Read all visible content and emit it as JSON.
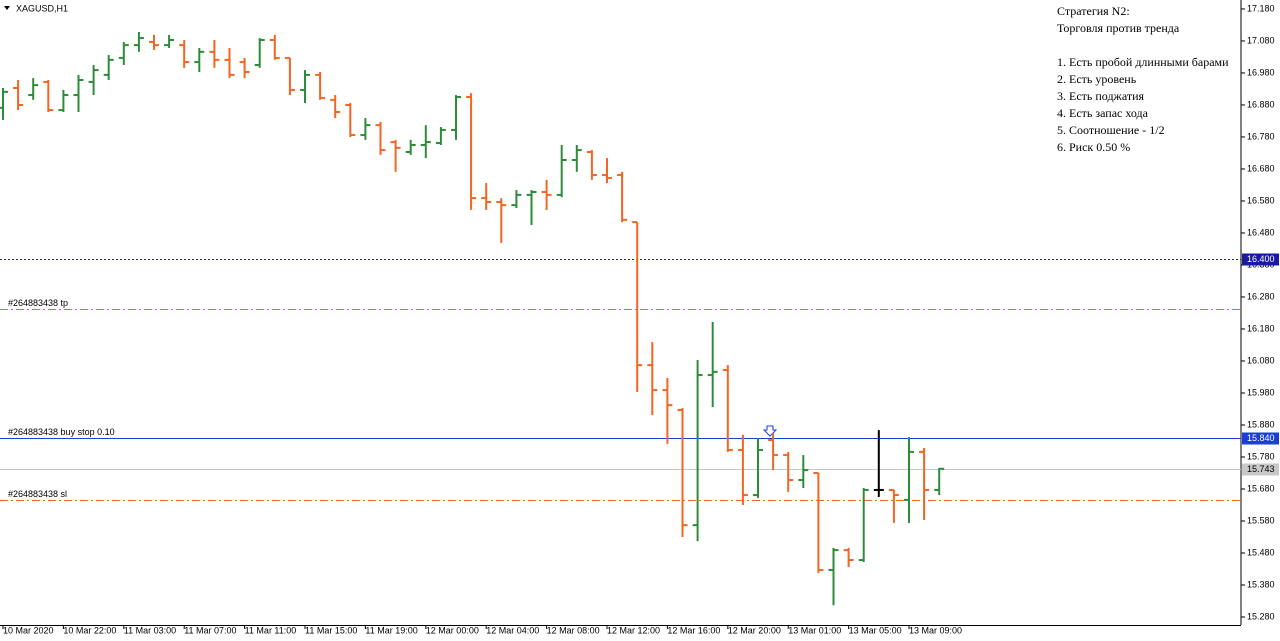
{
  "chart_data": {
    "type": "ohlc",
    "title": "XAGUSD,H1",
    "categories": [
      "10 Mar 2020",
      null,
      null,
      null,
      "10 Mar 22:00",
      null,
      null,
      null,
      "11 Mar 03:00",
      null,
      null,
      null,
      "11 Mar 07:00",
      null,
      null,
      null,
      "11 Mar 11:00",
      null,
      null,
      null,
      "11 Mar 15:00",
      null,
      null,
      null,
      "11 Mar 19:00",
      null,
      null,
      null,
      "12 Mar 00:00",
      null,
      null,
      null,
      "12 Mar 04:00",
      null,
      null,
      null,
      "12 Mar 08:00",
      null,
      null,
      null,
      "12 Mar 12:00",
      null,
      null,
      null,
      "12 Mar 16:00",
      null,
      null,
      null,
      "12 Mar 20:00",
      null,
      null,
      null,
      "13 Mar 01:00",
      null,
      null,
      null,
      "13 Mar 05:00",
      null,
      null,
      null,
      "13 Mar 09:00",
      null,
      null
    ],
    "open": [
      16.871,
      16.933,
      16.911,
      16.952,
      16.864,
      16.911,
      16.952,
      16.974,
      17.027,
      17.067,
      17.077,
      17.067,
      17.067,
      17.014,
      17.046,
      17.021,
      17.014,
      17.005,
      17.083,
      17.027,
      16.927,
      16.974,
      16.896,
      16.88,
      16.786,
      16.817,
      16.764,
      16.733,
      16.755,
      16.761,
      16.802,
      16.905,
      16.589,
      16.577,
      16.567,
      16.599,
      16.608,
      16.599,
      16.708,
      16.733,
      16.661,
      16.661,
      16.514,
      16.067,
      15.989,
      15.927,
      15.567,
      16.036,
      16.052,
      15.802,
      15.661,
      15.833,
      15.786,
      15.708,
      15.73,
      15.427,
      15.489,
      15.458,
      15.677,
      15.677,
      15.646,
      15.796,
      15.677
    ],
    "high": [
      16.933,
      16.958,
      16.964,
      16.958,
      16.927,
      16.974,
      17.005,
      17.036,
      17.077,
      17.108,
      17.099,
      17.099,
      17.083,
      17.058,
      17.083,
      17.058,
      17.027,
      17.089,
      17.099,
      17.027,
      16.989,
      16.983,
      16.911,
      16.886,
      16.839,
      16.827,
      16.771,
      16.771,
      16.817,
      16.811,
      16.911,
      16.917,
      16.636,
      16.589,
      16.614,
      16.614,
      16.646,
      16.755,
      16.755,
      16.739,
      16.714,
      16.671,
      16.514,
      16.139,
      16.027,
      15.933,
      16.083,
      16.202,
      16.067,
      15.849,
      15.839,
      15.855,
      15.796,
      15.786,
      15.73,
      15.496,
      15.496,
      15.683,
      15.864,
      15.677,
      15.842,
      15.808,
      15.746
    ],
    "low": [
      16.833,
      16.864,
      16.896,
      16.858,
      16.858,
      16.858,
      16.911,
      16.958,
      17.005,
      17.046,
      17.052,
      17.058,
      16.996,
      16.983,
      16.996,
      16.964,
      16.964,
      16.996,
      17.021,
      16.911,
      16.886,
      16.896,
      16.839,
      16.78,
      16.771,
      16.724,
      16.671,
      16.724,
      16.714,
      16.755,
      16.771,
      16.552,
      16.552,
      16.449,
      16.558,
      16.505,
      16.552,
      16.592,
      16.671,
      16.646,
      16.636,
      16.514,
      15.983,
      15.911,
      15.821,
      15.53,
      15.517,
      15.936,
      15.796,
      15.63,
      15.652,
      15.739,
      15.671,
      15.683,
      15.417,
      15.317,
      15.436,
      15.452,
      15.655,
      15.574,
      15.574,
      15.583,
      15.661
    ],
    "close": [
      16.921,
      16.88,
      16.942,
      16.864,
      16.911,
      16.958,
      16.989,
      17.021,
      17.067,
      17.089,
      17.067,
      17.083,
      17.014,
      17.046,
      17.021,
      16.974,
      16.983,
      17.083,
      17.027,
      16.927,
      16.974,
      16.902,
      16.858,
      16.786,
      16.817,
      16.739,
      16.746,
      16.755,
      16.764,
      16.802,
      16.905,
      16.589,
      16.577,
      16.567,
      16.599,
      16.608,
      16.599,
      16.708,
      16.739,
      16.661,
      16.652,
      16.521,
      16.067,
      15.989,
      15.942,
      15.567,
      16.036,
      16.046,
      15.802,
      15.661,
      15.802,
      15.786,
      15.708,
      15.739,
      15.427,
      15.489,
      15.458,
      15.677,
      15.677,
      15.661,
      15.796,
      15.677,
      15.743
    ],
    "up_color": "#2e8b3a",
    "down_color": "#f26522",
    "doji_color": "#000000",
    "ylim": [
      15.255,
      17.208
    ],
    "yticks": [
      {
        "value": 15.28,
        "label": "15.280"
      },
      {
        "value": 15.38,
        "label": "15.380"
      },
      {
        "value": 15.48,
        "label": "15.480"
      },
      {
        "value": 15.58,
        "label": "15.580"
      },
      {
        "value": 15.68,
        "label": "15.680"
      },
      {
        "value": 15.78,
        "label": "15.780"
      },
      {
        "value": 15.88,
        "label": "15.880"
      },
      {
        "value": 15.98,
        "label": "15.980"
      },
      {
        "value": 16.08,
        "label": "16.080"
      },
      {
        "value": 16.18,
        "label": "16.180"
      },
      {
        "value": 16.28,
        "label": "16.280"
      },
      {
        "value": 16.38,
        "label": "16.380"
      },
      {
        "value": 16.48,
        "label": "16.480"
      },
      {
        "value": 16.58,
        "label": "16.580"
      },
      {
        "value": 16.68,
        "label": "16.680"
      },
      {
        "value": 16.78,
        "label": "16.780"
      },
      {
        "value": 16.88,
        "label": "16.880"
      },
      {
        "value": 16.98,
        "label": "16.980"
      },
      {
        "value": 17.08,
        "label": "17.080"
      },
      {
        "value": 17.18,
        "label": "17.180"
      }
    ],
    "hlines": [
      {
        "value": 16.4,
        "price_label": "16.400",
        "color": "#1a1aa6",
        "style": "dotted"
      },
      {
        "value": 16.243,
        "label": "#264883438 tp",
        "color": "#f26522",
        "style": "dashdot"
      },
      {
        "value": 15.84,
        "label": "#264883438 buy stop 0.10",
        "price_label": "15.840",
        "color": "#1a3fd6",
        "style": "solid"
      },
      {
        "value": 15.646,
        "label": "#264883438 sl",
        "color": "#f26522",
        "style": "dashdot"
      },
      {
        "value": 15.743,
        "price_label": "15.743",
        "color": "#c8c8c8",
        "label_color": "#000000",
        "style": "solid"
      }
    ],
    "annotation": {
      "title": "Стратегия N2:",
      "subtitle": "Торговля против тренда",
      "lines": [
        "1. Есть пробой длинными барами",
        "2. Есть уровень",
        "3. Есть поджатия",
        "4. Есть запас хода",
        "5. Соотношение - 1/2",
        "6. Риск 0.50 %"
      ]
    }
  }
}
